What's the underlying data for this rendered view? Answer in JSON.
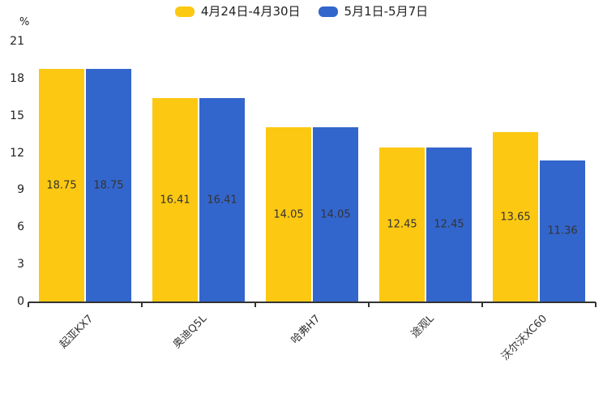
{
  "chart_data": {
    "type": "bar",
    "title": "",
    "categories": [
      "起亚KX7",
      "奥迪Q5L",
      "哈弗H7",
      "途观L",
      "沃尔沃XC60"
    ],
    "series": [
      {
        "name": "4月24日-4月30日",
        "color": "#FCC812",
        "values": [
          18.75,
          16.41,
          14.05,
          12.45,
          13.65
        ]
      },
      {
        "name": "5月1日-5月7日",
        "color": "#3366CC",
        "values": [
          18.75,
          16.41,
          14.05,
          12.45,
          11.36
        ]
      }
    ],
    "xlabel": "",
    "ylabel": "%",
    "yticks": [
      0,
      3,
      6,
      9,
      12,
      15,
      18,
      21
    ],
    "ylim": [
      0,
      21
    ],
    "grid": false,
    "legend_position": "top",
    "value_labels": true,
    "value_label_color": "#333333",
    "axis_color": "#333333",
    "background_color": "#ffffff"
  }
}
